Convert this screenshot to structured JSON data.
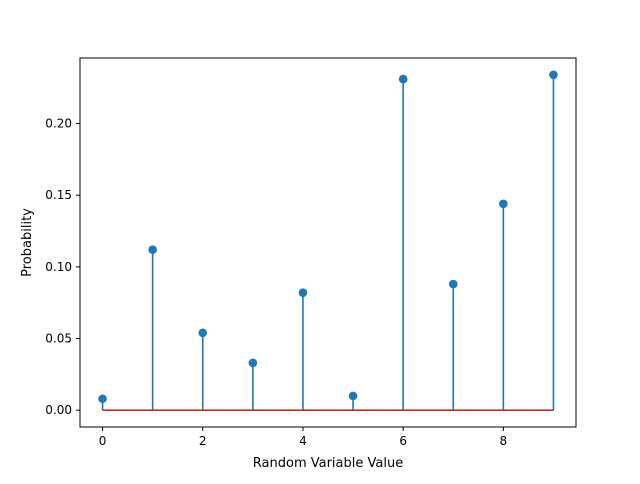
{
  "chart_data": {
    "type": "stem",
    "title": "",
    "xlabel": "Random Variable Value",
    "ylabel": "Probability",
    "xlim": [
      -0.45,
      9.45
    ],
    "ylim": [
      -0.0117,
      0.2457
    ],
    "x_ticks": [
      0,
      2,
      4,
      6,
      8
    ],
    "x_tick_labels": [
      "0",
      "2",
      "4",
      "6",
      "8"
    ],
    "y_ticks": [
      0.0,
      0.05,
      0.1,
      0.15,
      0.2
    ],
    "y_tick_labels": [
      "0.00",
      "0.05",
      "0.10",
      "0.15",
      "0.20"
    ],
    "grid": false,
    "baseline": 0,
    "series": [
      {
        "x": [
          0,
          1,
          2,
          3,
          4,
          5,
          6,
          7,
          8,
          9
        ],
        "values": [
          0.008,
          0.112,
          0.054,
          0.033,
          0.082,
          0.01,
          0.231,
          0.088,
          0.144,
          0.234
        ]
      }
    ],
    "colors": {
      "stem": "#1f77b4",
      "marker": "#1f77b4",
      "baseline": "#d62728",
      "axes": "#000000"
    }
  }
}
